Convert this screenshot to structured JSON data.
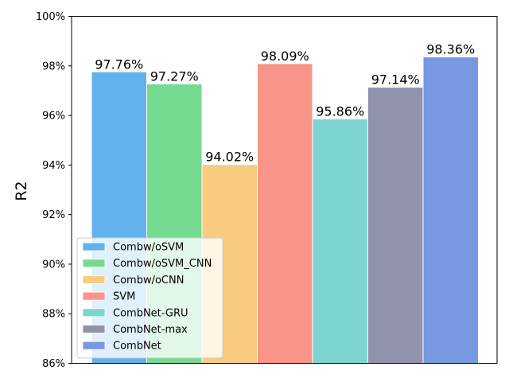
{
  "chart_data": {
    "type": "bar",
    "title": "",
    "xlabel": "",
    "ylabel": "R2",
    "ylim": [
      86,
      100
    ],
    "yticks": [
      86,
      88,
      90,
      92,
      94,
      96,
      98,
      100
    ],
    "ytick_labels": [
      "86%",
      "88%",
      "90%",
      "92%",
      "94%",
      "96%",
      "98%",
      "100%"
    ],
    "grid": false,
    "legend_position": "lower-left",
    "series": [
      {
        "name": "Combw/oSVM",
        "value": 97.76,
        "label": "97.76%",
        "color": "#63b2ee"
      },
      {
        "name": "Combw/oSVM_CNN",
        "value": 97.27,
        "label": "97.27%",
        "color": "#76da91"
      },
      {
        "name": "Combw/oCNN",
        "value": 94.02,
        "label": "94.02%",
        "color": "#f8cb7f"
      },
      {
        "name": "SVM",
        "value": 98.09,
        "label": "98.09%",
        "color": "#f89588"
      },
      {
        "name": "CombNet-GRU",
        "value": 95.86,
        "label": "95.86%",
        "color": "#7cd6cf"
      },
      {
        "name": "CombNet-max",
        "value": 97.14,
        "label": "97.14%",
        "color": "#9192ab"
      },
      {
        "name": "CombNet",
        "value": 98.36,
        "label": "98.36%",
        "color": "#7898e1"
      }
    ]
  }
}
